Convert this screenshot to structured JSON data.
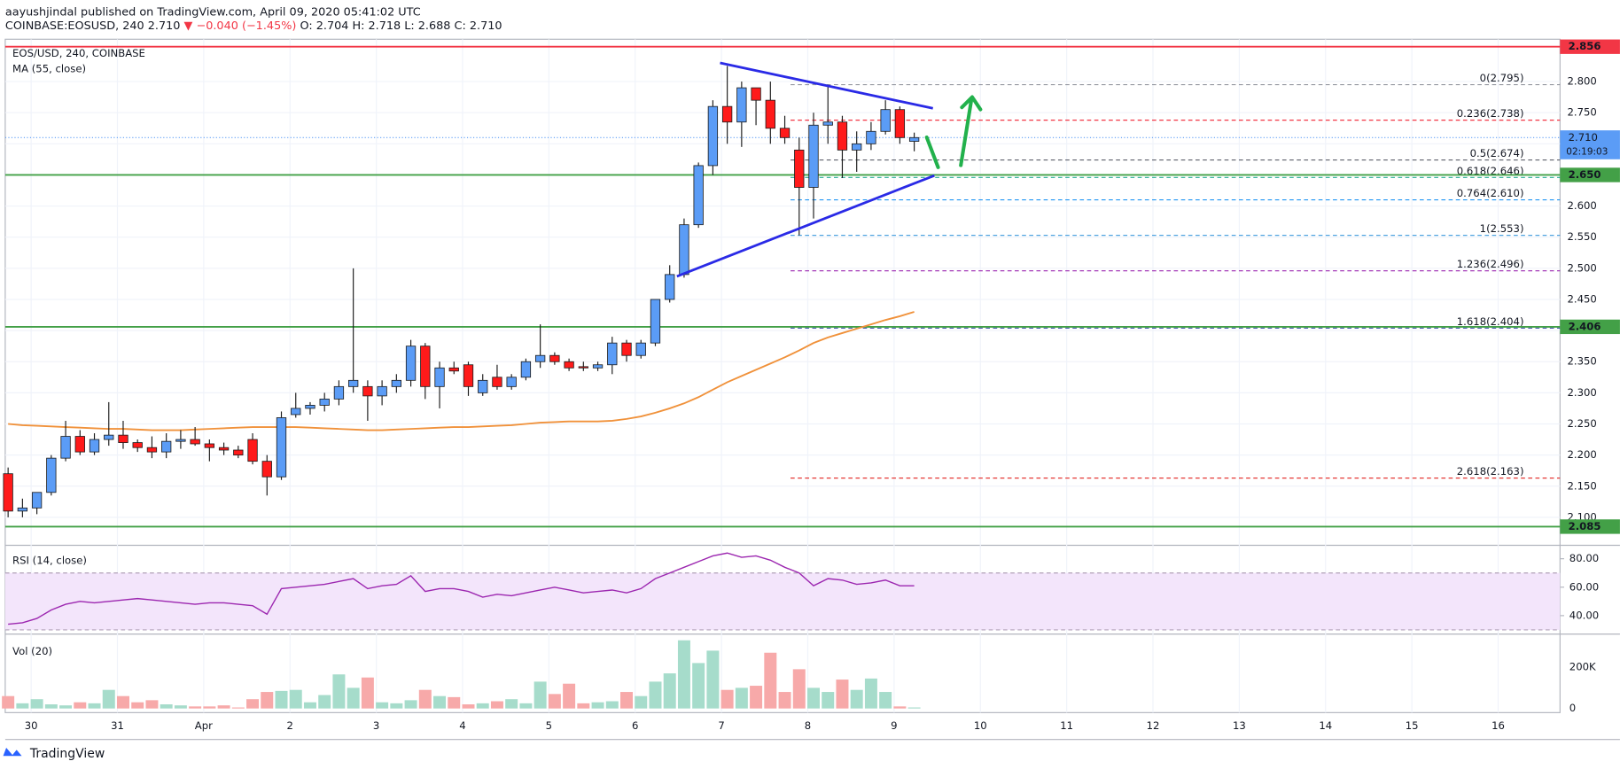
{
  "header": {
    "author_line": "aayushjindal published on TradingView.com, April 09, 2020 05:41:02 UTC",
    "symbol": "COINBASE:EOSUSD, 240",
    "last": "2.710",
    "change": "▼ −0.040 (−1.45%)",
    "ohlc": "O: 2.704 H: 2.718 L: 2.688 C: 2.710",
    "footer": "TradingView"
  },
  "chart_data": [
    {
      "type": "candlestick",
      "title": "EOS/USD, 240, COINBASE",
      "up_color": "#5b9cf6",
      "down_color": "#ff1a1a",
      "ohlc": [
        [
          2.17,
          2.18,
          2.1,
          2.11
        ],
        [
          2.11,
          2.13,
          2.1,
          2.115
        ],
        [
          2.115,
          2.14,
          2.105,
          2.14
        ],
        [
          2.14,
          2.2,
          2.135,
          2.195
        ],
        [
          2.195,
          2.255,
          2.19,
          2.23
        ],
        [
          2.23,
          2.24,
          2.2,
          2.205
        ],
        [
          2.205,
          2.235,
          2.2,
          2.225
        ],
        [
          2.225,
          2.285,
          2.215,
          2.232
        ],
        [
          2.232,
          2.255,
          2.21,
          2.22
        ],
        [
          2.22,
          2.225,
          2.205,
          2.212
        ],
        [
          2.212,
          2.23,
          2.195,
          2.205
        ],
        [
          2.205,
          2.235,
          2.195,
          2.222
        ],
        [
          2.222,
          2.24,
          2.21,
          2.225
        ],
        [
          2.225,
          2.245,
          2.215,
          2.218
        ],
        [
          2.218,
          2.225,
          2.19,
          2.212
        ],
        [
          2.212,
          2.22,
          2.2,
          2.208
        ],
        [
          2.208,
          2.215,
          2.195,
          2.2
        ],
        [
          2.225,
          2.235,
          2.185,
          2.19
        ],
        [
          2.19,
          2.2,
          2.135,
          2.165
        ],
        [
          2.165,
          2.27,
          2.16,
          2.26
        ],
        [
          2.265,
          2.3,
          2.26,
          2.275
        ],
        [
          2.275,
          2.285,
          2.265,
          2.28
        ],
        [
          2.28,
          2.3,
          2.27,
          2.29
        ],
        [
          2.29,
          2.32,
          2.28,
          2.31
        ],
        [
          2.31,
          2.5,
          2.3,
          2.32
        ],
        [
          2.31,
          2.32,
          2.255,
          2.295
        ],
        [
          2.295,
          2.32,
          2.28,
          2.31
        ],
        [
          2.31,
          2.33,
          2.3,
          2.32
        ],
        [
          2.32,
          2.385,
          2.31,
          2.375
        ],
        [
          2.375,
          2.38,
          2.29,
          2.31
        ],
        [
          2.31,
          2.35,
          2.275,
          2.34
        ],
        [
          2.34,
          2.35,
          2.33,
          2.335
        ],
        [
          2.345,
          2.35,
          2.295,
          2.31
        ],
        [
          2.3,
          2.33,
          2.295,
          2.32
        ],
        [
          2.325,
          2.345,
          2.305,
          2.31
        ],
        [
          2.31,
          2.33,
          2.305,
          2.325
        ],
        [
          2.325,
          2.355,
          2.32,
          2.35
        ],
        [
          2.35,
          2.41,
          2.34,
          2.36
        ],
        [
          2.36,
          2.365,
          2.345,
          2.35
        ],
        [
          2.35,
          2.355,
          2.335,
          2.34
        ],
        [
          2.342,
          2.35,
          2.335,
          2.34
        ],
        [
          2.34,
          2.35,
          2.335,
          2.345
        ],
        [
          2.345,
          2.39,
          2.33,
          2.38
        ],
        [
          2.38,
          2.385,
          2.35,
          2.36
        ],
        [
          2.36,
          2.385,
          2.355,
          2.38
        ],
        [
          2.38,
          2.45,
          2.375,
          2.45
        ],
        [
          2.45,
          2.505,
          2.445,
          2.49
        ],
        [
          2.49,
          2.58,
          2.485,
          2.57
        ],
        [
          2.57,
          2.67,
          2.565,
          2.665
        ],
        [
          2.665,
          2.77,
          2.65,
          2.76
        ],
        [
          2.76,
          2.825,
          2.7,
          2.735
        ],
        [
          2.735,
          2.8,
          2.695,
          2.79
        ],
        [
          2.79,
          2.79,
          2.73,
          2.77
        ],
        [
          2.77,
          2.8,
          2.7,
          2.725
        ],
        [
          2.725,
          2.745,
          2.7,
          2.71
        ],
        [
          2.69,
          2.71,
          2.553,
          2.63
        ],
        [
          2.63,
          2.75,
          2.58,
          2.73
        ],
        [
          2.73,
          2.795,
          2.7,
          2.735
        ],
        [
          2.735,
          2.745,
          2.645,
          2.69
        ],
        [
          2.69,
          2.72,
          2.655,
          2.7
        ],
        [
          2.7,
          2.735,
          2.69,
          2.72
        ],
        [
          2.72,
          2.77,
          2.715,
          2.755
        ],
        [
          2.755,
          2.76,
          2.7,
          2.71
        ],
        [
          2.704,
          2.718,
          2.688,
          2.71
        ]
      ],
      "series": [
        {
          "name": "MA (55, close)",
          "color": "#f0913a",
          "values": [
            2.25,
            2.248,
            2.247,
            2.246,
            2.245,
            2.244,
            2.243,
            2.242,
            2.242,
            2.241,
            2.24,
            2.24,
            2.24,
            2.241,
            2.242,
            2.243,
            2.244,
            2.245,
            2.245,
            2.245,
            2.245,
            2.244,
            2.243,
            2.242,
            2.241,
            2.24,
            2.24,
            2.241,
            2.242,
            2.243,
            2.244,
            2.245,
            2.245,
            2.246,
            2.247,
            2.248,
            2.25,
            2.252,
            2.253,
            2.254,
            2.254,
            2.254,
            2.255,
            2.258,
            2.262,
            2.268,
            2.275,
            2.283,
            2.293,
            2.305,
            2.317,
            2.327,
            2.337,
            2.347,
            2.357,
            2.368,
            2.38,
            2.389,
            2.396,
            2.403,
            2.41,
            2.417,
            2.423,
            2.43
          ]
        }
      ],
      "xlim": [
        -0.2,
        107.9
      ],
      "xticks": [
        {
          "value": 1.6,
          "label": "30"
        },
        {
          "value": 7.6,
          "label": "31"
        },
        {
          "value": 13.6,
          "label": "Apr"
        },
        {
          "value": 19.6,
          "label": "2"
        },
        {
          "value": 25.6,
          "label": "3"
        },
        {
          "value": 31.6,
          "label": "4"
        },
        {
          "value": 37.6,
          "label": "5"
        },
        {
          "value": 43.6,
          "label": "6"
        },
        {
          "value": 49.6,
          "label": "7"
        },
        {
          "value": 55.6,
          "label": "8"
        },
        {
          "value": 61.6,
          "label": "9"
        },
        {
          "value": 67.6,
          "label": "10"
        },
        {
          "value": 73.6,
          "label": "11"
        },
        {
          "value": 79.6,
          "label": "12"
        },
        {
          "value": 85.6,
          "label": "13"
        },
        {
          "value": 91.6,
          "label": "14"
        },
        {
          "value": 97.6,
          "label": "15"
        },
        {
          "value": 103.6,
          "label": "16"
        }
      ],
      "ylim": [
        2.055,
        2.868
      ],
      "yticks": [
        {
          "value": 2.1,
          "label": "2.100"
        },
        {
          "value": 2.15,
          "label": "2.150"
        },
        {
          "value": 2.2,
          "label": "2.200"
        },
        {
          "value": 2.25,
          "label": "2.250"
        },
        {
          "value": 2.3,
          "label": "2.300"
        },
        {
          "value": 2.35,
          "label": "2.350"
        },
        {
          "value": 2.4,
          "label": "2.400"
        },
        {
          "value": 2.45,
          "label": "2.450"
        },
        {
          "value": 2.5,
          "label": "2.500"
        },
        {
          "value": 2.55,
          "label": "2.550"
        },
        {
          "value": 2.6,
          "label": "2.600"
        },
        {
          "value": 2.65,
          "label": "2.650"
        },
        {
          "value": 2.7,
          "label": "2.700"
        },
        {
          "value": 2.75,
          "label": "2.750"
        },
        {
          "value": 2.8,
          "label": "2.800"
        }
      ],
      "grid": true,
      "hlines": [
        {
          "value": 2.856,
          "color": "#f23645"
        },
        {
          "value": 2.65,
          "label": "2.650",
          "color": "#43a047"
        },
        {
          "value": 2.406,
          "color": "#43a047"
        },
        {
          "value": 2.085,
          "color": "#43a047"
        }
      ],
      "last": {
        "value": 2.71,
        "label": "2.710",
        "countdown": "02:19:03",
        "color": "#5b9cf6"
      },
      "fib": {
        "from": 54.4,
        "levels": [
          {
            "value": 2.795,
            "label": "0(2.795)",
            "color": "#9598a1"
          },
          {
            "value": 2.738,
            "label": "0.236(2.738)",
            "color": "#f23645"
          },
          {
            "value": 2.674,
            "label": "0.5(2.674)",
            "color": "#5d606b"
          },
          {
            "value": 2.646,
            "label": "0.618(2.646)",
            "color": "#22ab94"
          },
          {
            "value": 2.61,
            "label": "0.764(2.610)",
            "color": "#2196f3"
          },
          {
            "value": 2.553,
            "label": "1(2.553)",
            "color": "#4fa3e0"
          },
          {
            "value": 2.496,
            "label": "1.236(2.496)",
            "color": "#9c27b0"
          },
          {
            "value": 2.404,
            "label": "1.618(2.404)",
            "color": "#3949ab"
          },
          {
            "value": 2.163,
            "label": "2.618(2.163)",
            "color": "#e53935"
          }
        ]
      },
      "trendlines": [
        {
          "points": [
            [
              49.5,
              2.83
            ],
            [
              64.3,
              2.757
            ]
          ],
          "color": "#2a2ae6"
        },
        {
          "points": [
            [
              46.5,
              2.487
            ],
            [
              64.4,
              2.649
            ]
          ],
          "color": "#2a2ae6"
        }
      ]
    },
    {
      "type": "line",
      "title": "RSI (14, close)",
      "color": "#9c27b0",
      "band": [
        30,
        70
      ],
      "values": [
        34,
        35,
        38,
        44,
        48,
        50,
        49,
        50,
        51,
        52,
        51,
        50,
        49,
        48,
        49,
        49,
        48,
        47,
        41,
        59,
        60,
        61,
        62,
        64,
        66,
        59,
        61,
        62,
        68,
        57,
        59,
        59,
        57,
        53,
        55,
        54,
        56,
        58,
        60,
        58,
        56,
        57,
        58,
        56,
        59,
        66,
        70,
        74,
        78,
        82,
        84,
        81,
        82,
        79,
        74,
        70,
        61,
        66,
        65,
        62,
        63,
        65,
        61,
        61
      ],
      "ylim": [
        27,
        88
      ],
      "yticks": [
        {
          "value": 40,
          "label": "40.00"
        },
        {
          "value": 60,
          "label": "60.00"
        },
        {
          "value": 80,
          "label": "80.00"
        }
      ]
    },
    {
      "type": "bar",
      "title": "Vol (20)",
      "up_color": "#a6dccb",
      "down_color": "#f7a9a9",
      "values": [
        60000,
        25000,
        45000,
        20000,
        15000,
        30000,
        25000,
        90000,
        60000,
        30000,
        40000,
        20000,
        15000,
        10000,
        10000,
        15000,
        5000,
        45000,
        80000,
        85000,
        90000,
        30000,
        65000,
        165000,
        100000,
        150000,
        30000,
        25000,
        40000,
        90000,
        60000,
        55000,
        20000,
        25000,
        35000,
        45000,
        25000,
        130000,
        70000,
        120000,
        25000,
        30000,
        35000,
        80000,
        60000,
        130000,
        170000,
        330000,
        220000,
        280000,
        90000,
        100000,
        110000,
        270000,
        80000,
        190000,
        100000,
        80000,
        140000,
        90000,
        145000,
        80000,
        10000,
        5000
      ],
      "ylim": [
        -20000,
        350000
      ],
      "yticks": [
        0,
        {
          "value": 200000,
          "label": "200K"
        }
      ]
    }
  ]
}
